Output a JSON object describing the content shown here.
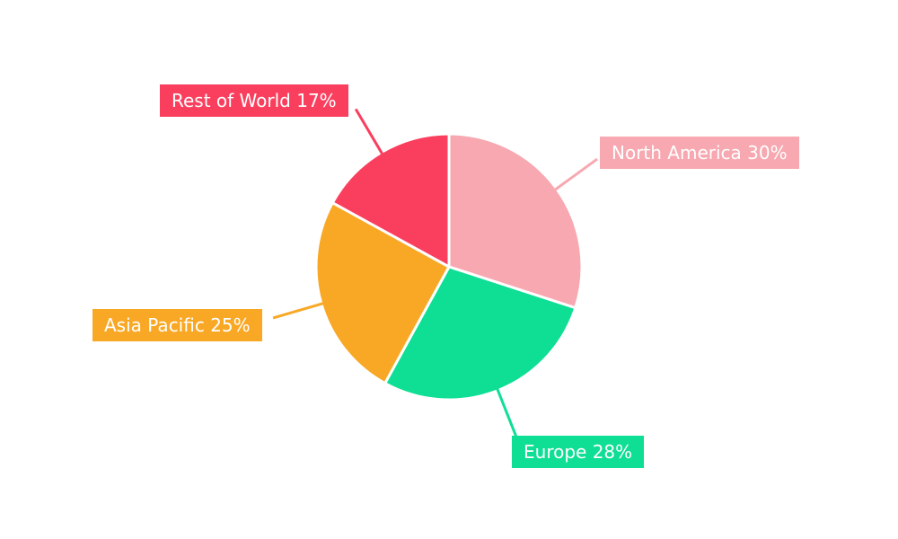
{
  "chart_data": {
    "type": "pie",
    "title": "",
    "legend_position": "none",
    "background": "#ffffff",
    "start_angle_deg": 0,
    "direction": "clockwise",
    "total_percent": 100,
    "slices": [
      {
        "label": "North America",
        "value": 30,
        "unit": "%",
        "color": "#F7A8B0",
        "display": "North America 30%"
      },
      {
        "label": "Europe",
        "value": 28,
        "unit": "%",
        "color": "#0FDE95",
        "display": "Europe 28%"
      },
      {
        "label": "Asia Pacific",
        "value": 25,
        "unit": "%",
        "color": "#F9A826",
        "display": "Asia Pacific 25%"
      },
      {
        "label": "Rest of World",
        "value": 17,
        "unit": "%",
        "color": "#FA3F5E",
        "display": "Rest of World 17%"
      }
    ]
  }
}
